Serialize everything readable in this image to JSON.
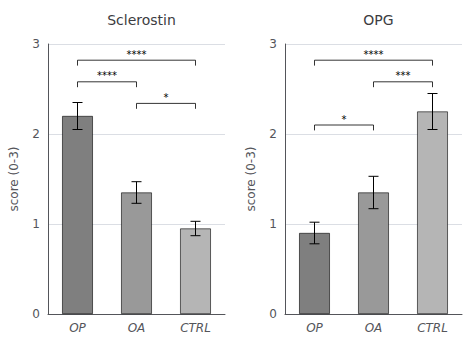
{
  "chart_data": [
    {
      "type": "bar",
      "title": "Sclerostin",
      "categories": [
        "OP",
        "OA",
        "CTRL"
      ],
      "values": [
        2.2,
        1.35,
        0.95
      ],
      "errors": [
        0.15,
        0.12,
        0.08
      ],
      "ylabel": "score (0-3)",
      "ylim": [
        0,
        3
      ],
      "yticks": [
        0,
        1,
        2,
        3
      ],
      "colors": [
        "#7f7f7f",
        "#999999",
        "#b5b5b5"
      ],
      "annotations": [
        {
          "x1": "OP",
          "x2": "CTRL",
          "y": 2.82,
          "label": "****"
        },
        {
          "x1": "OP",
          "x2": "OA",
          "y": 2.58,
          "label": "****"
        },
        {
          "x1": "OA",
          "x2": "CTRL",
          "y": 2.34,
          "label": "*"
        }
      ]
    },
    {
      "type": "bar",
      "title": "OPG",
      "categories": [
        "OP",
        "OA",
        "CTRL"
      ],
      "values": [
        0.9,
        1.35,
        2.25
      ],
      "errors": [
        0.12,
        0.18,
        0.2
      ],
      "ylabel": "score (0-3)",
      "ylim": [
        0,
        3
      ],
      "yticks": [
        0,
        1,
        2,
        3
      ],
      "colors": [
        "#7f7f7f",
        "#999999",
        "#b5b5b5"
      ],
      "annotations": [
        {
          "x1": "OP",
          "x2": "CTRL",
          "y": 2.82,
          "label": "****"
        },
        {
          "x1": "OA",
          "x2": "CTRL",
          "y": 2.58,
          "label": "***"
        },
        {
          "x1": "OP",
          "x2": "OA",
          "y": 2.1,
          "label": "*"
        }
      ]
    }
  ]
}
